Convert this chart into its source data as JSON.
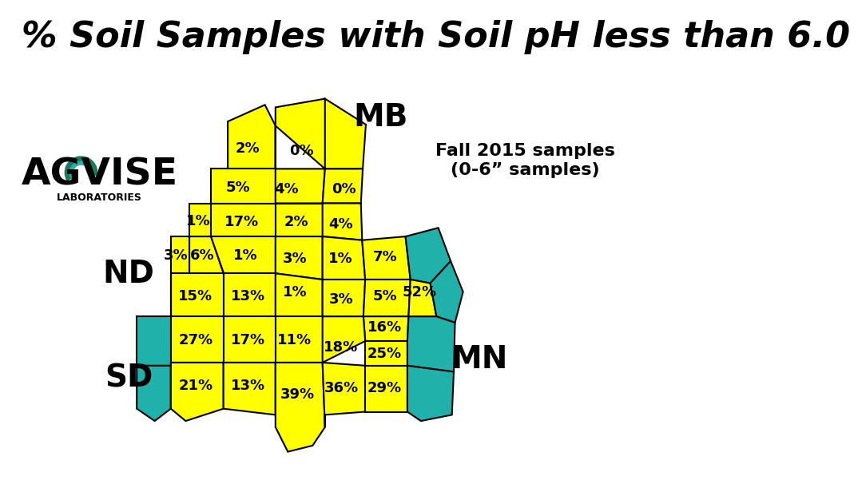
{
  "title": "% Soil Samples with Soil pH less than 6.0",
  "title_fontsize": 32,
  "title_style": "italic",
  "title_weight": "bold",
  "subtitle": "Fall 2015 samples\n(0-6” samples)",
  "subtitle_fontsize": 16,
  "subtitle_weight": "bold",
  "yellow": "#FFFF00",
  "teal": "#20B2AA",
  "black": "#000000",
  "white": "#FFFFFF",
  "cell_fontsize": 13,
  "cell_fontweight": "bold"
}
